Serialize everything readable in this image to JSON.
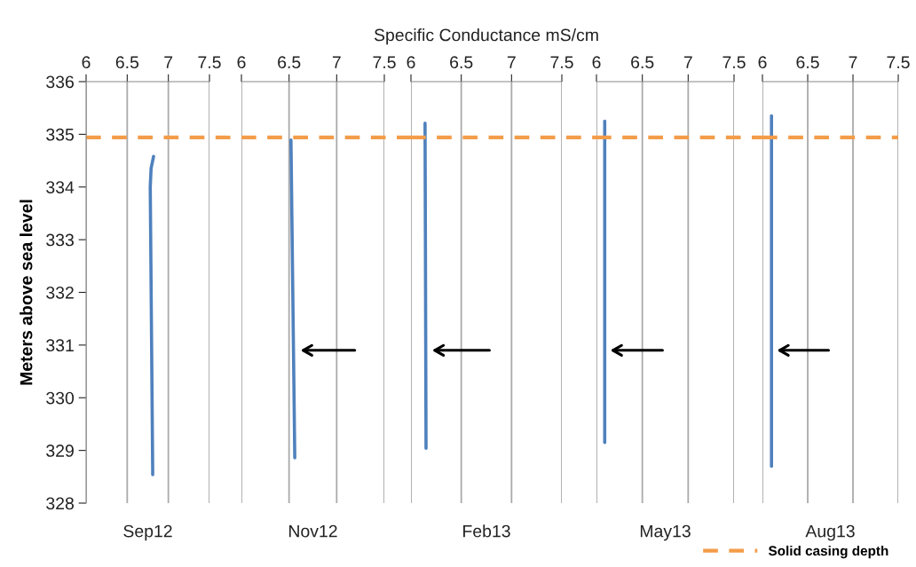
{
  "chart_data": [
    {
      "type": "line",
      "title": "Sep12",
      "ylabel": "Meters above sea level",
      "xlim": [
        6,
        7.5
      ],
      "xticks": [
        6,
        6.5,
        7,
        7.5
      ],
      "ylim": [
        328,
        336
      ],
      "yticks": [
        328,
        329,
        330,
        331,
        332,
        333,
        334,
        335,
        336
      ],
      "grid": "x",
      "legend": false,
      "series": [
        {
          "color": "#4f81bd",
          "x": [
            6.82,
            6.79,
            6.78,
            6.81
          ],
          "values": [
            334.58,
            334.35,
            334.0,
            328.54
          ]
        }
      ],
      "ref_lines": [
        {
          "axis": "y",
          "value": 334.94,
          "color": "#f39c4a",
          "line_style": "dashed"
        }
      ]
    },
    {
      "type": "line",
      "title": "Nov12",
      "xlim": [
        6,
        7.5
      ],
      "xticks": [
        6,
        6.5,
        7,
        7.5
      ],
      "ylim": [
        328,
        336
      ],
      "tick_labels": "x",
      "grid": "x",
      "legend": false,
      "series": [
        {
          "color": "#4f81bd",
          "x": [
            6.52,
            6.56
          ],
          "values": [
            334.89,
            328.86
          ]
        }
      ],
      "ref_lines": [
        {
          "axis": "y",
          "value": 334.94,
          "color": "#f39c4a",
          "line_style": "dashed"
        }
      ]
    },
    {
      "type": "line",
      "title": "Feb13",
      "xlabel": "Specific Conductance mS/cm",
      "xlim": [
        6,
        7.5
      ],
      "xticks": [
        6,
        6.5,
        7,
        7.5
      ],
      "ylim": [
        328,
        336
      ],
      "tick_labels": "x",
      "grid": "x",
      "legend": false,
      "series": [
        {
          "color": "#4f81bd",
          "x": [
            6.14,
            6.15
          ],
          "values": [
            335.21,
            329.04
          ]
        }
      ],
      "ref_lines": [
        {
          "axis": "y",
          "value": 334.94,
          "color": "#f39c4a",
          "line_style": "dashed"
        }
      ]
    },
    {
      "type": "line",
      "title": "May13",
      "xlim": [
        6,
        7.5
      ],
      "xticks": [
        6,
        6.5,
        7,
        7.5
      ],
      "ylim": [
        328,
        336
      ],
      "tick_labels": "x",
      "grid": "x",
      "legend": false,
      "series": [
        {
          "color": "#4f81bd",
          "x": [
            6.09,
            6.09
          ],
          "values": [
            335.25,
            329.15
          ]
        }
      ],
      "ref_lines": [
        {
          "axis": "y",
          "value": 334.94,
          "color": "#f39c4a",
          "line_style": "dashed"
        }
      ]
    },
    {
      "type": "line",
      "title": "Aug13",
      "xlim": [
        6,
        7.5
      ],
      "xticks": [
        6,
        6.5,
        7,
        7.5
      ],
      "ylim": [
        328,
        336
      ],
      "tick_labels": "x",
      "grid": "x",
      "legend": "bottom",
      "series": [
        {
          "color": "#4f81bd",
          "x": [
            6.1,
            6.1
          ],
          "values": [
            335.35,
            328.7
          ]
        }
      ],
      "ref_lines": [
        {
          "axis": "y",
          "value": 334.94,
          "color": "#f39c4a",
          "line_style": "dashed",
          "label": "Solid casing depth"
        }
      ]
    }
  ]
}
